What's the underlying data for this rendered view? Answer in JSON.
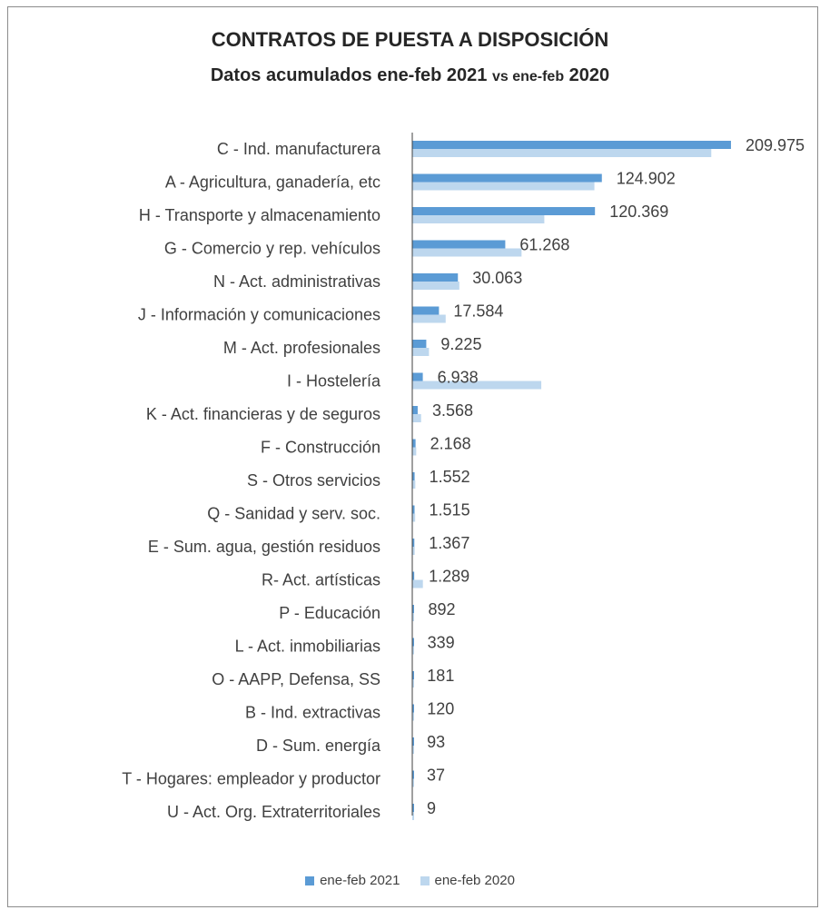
{
  "chart_data": {
    "type": "bar",
    "orientation": "horizontal",
    "title": "CONTRATOS DE PUESTA A DISPOSICIÓN",
    "subtitle_parts": [
      "Datos acumulados ene-feb 2021 ",
      "vs ene-feb",
      " 2020"
    ],
    "categories": [
      "C - Ind. manufacturera",
      "A - Agricultura, ganadería, etc",
      "H - Transporte y almacenamiento",
      "G - Comercio y rep. vehículos",
      "N - Act. administrativas",
      "J - Información y comunicaciones",
      "M - Act. profesionales",
      "I - Hostelería",
      "K - Act. financieras y de seguros",
      "F - Construcción",
      "S - Otros servicios",
      "Q - Sanidad y serv. soc.",
      "E - Sum. agua, gestión residuos",
      "R- Act. artísticas",
      "P - Educación",
      "L - Act. inmobiliarias",
      "O - AAPP, Defensa, SS",
      "B - Ind. extractivas",
      "D - Sum. energía",
      "T - Hogares: empleador y productor",
      "U - Act. Org. Extraterritoriales"
    ],
    "series": [
      {
        "name": "ene-feb 2021",
        "color": "#5b9bd5",
        "values": [
          209975,
          124902,
          120369,
          61268,
          30063,
          17584,
          9225,
          6938,
          3568,
          2168,
          1552,
          1515,
          1367,
          1289,
          892,
          339,
          181,
          120,
          93,
          37,
          9
        ],
        "labels": [
          "209.975",
          "124.902",
          "120.369",
          "61.268",
          "30.063",
          "17.584",
          "9.225",
          "6.938",
          "3.568",
          "2.168",
          "1.552",
          "1.515",
          "1.367",
          "1.289",
          "892",
          "339",
          "181",
          "120",
          "93",
          "37",
          "9"
        ]
      },
      {
        "name": "ene-feb 2020",
        "color": "#bdd7ee",
        "values": [
          197000,
          120000,
          87000,
          72000,
          31000,
          22000,
          11000,
          85000,
          5800,
          2600,
          2000,
          1900,
          1600,
          7000,
          1100,
          500,
          300,
          200,
          150,
          60,
          20
        ]
      }
    ],
    "xlim": [
      0,
      210000
    ],
    "legend_position": "bottom"
  }
}
